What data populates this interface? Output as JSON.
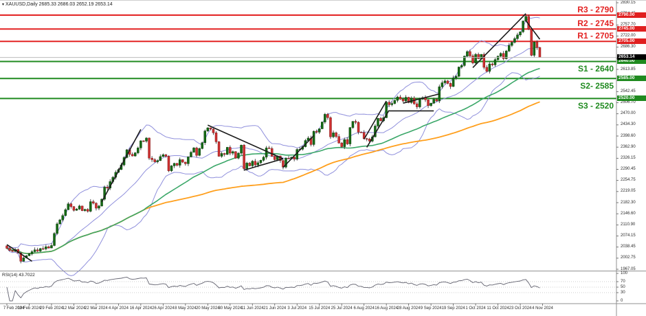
{
  "window": {
    "title": "XAUUSD,Daily  2685.33 2686.03 2652.19 2653.14"
  },
  "colors": {
    "background": "#ffffff",
    "bull_candle": "#156b15",
    "bull_border": "#0a3d0a",
    "bear_candle": "#d03131",
    "bear_border": "#7a1616",
    "wick": "#3c3c3c",
    "bollinger": "#8f8fdc",
    "ma_fast_green": "#3aa768",
    "ma_slow_orange": "#ff9f1c",
    "resistance_line": "#e32222",
    "support_line": "#1f8a1f",
    "current_price_line": "#bcbcbc",
    "trendline": "#1a1a1a",
    "rsi_line": "#62626f",
    "rsi_grid": "#bdbdbd",
    "badge_resistance": "#e01f1f",
    "badge_support": "#1f8a1f",
    "badge_current": "#000000",
    "frame": "#909090"
  },
  "levels": [
    {
      "id": "R3",
      "label": "R3 - 2790",
      "price": 2790,
      "badge": "2790.00",
      "kind": "resistance"
    },
    {
      "id": "R2",
      "label": "R2 - 2745",
      "price": 2745,
      "badge": "2745.00",
      "kind": "resistance"
    },
    {
      "id": "R1",
      "label": "R1 - 2705",
      "price": 2705,
      "badge": "2705.00",
      "kind": "resistance"
    },
    {
      "id": "S1",
      "label": "S1 - 2640",
      "price": 2640,
      "badge": "2640.00",
      "kind": "support"
    },
    {
      "id": "S2",
      "label": "S2- 2585",
      "price": 2585,
      "badge": "2585.00",
      "kind": "support"
    },
    {
      "id": "S3",
      "label": "S3 - 2520",
      "price": 2520,
      "badge": "2520.00",
      "kind": "support"
    }
  ],
  "current_price": {
    "value": 2653.14,
    "badge": "2653.14"
  },
  "price_axis": {
    "top_value": 2830.15,
    "bottom_value": 1967.05,
    "ticks": [
      "2830.15",
      "2794.45",
      "2757.70",
      "2722.00",
      "2686.30",
      "2650.60",
      "2613.85",
      "2578.15",
      "2542.45",
      "2506.70",
      "2470.00",
      "2434.30",
      "2398.60",
      "2362.90",
      "2326.15",
      "2290.45",
      "2254.75",
      "2219.05",
      "2182.30",
      "2146.60",
      "2110.90",
      "2074.15",
      "2038.45",
      "2002.75",
      "1967.05"
    ]
  },
  "rsi_pane": {
    "label": "RSI(14) 43.7022",
    "period": 14,
    "value": 43.7022,
    "scale": [
      "100",
      "70",
      "50",
      "30",
      "0"
    ],
    "scale_values": [
      100,
      70,
      50,
      30,
      0
    ],
    "grid_levels": [
      70,
      50,
      30
    ]
  },
  "date_axis": {
    "labels": [
      "7 Feb 2024",
      "19 Feb 2024",
      "29 Feb 2024",
      "12 Mar 2024",
      "22 Mar 2024",
      "4 Apr 2024",
      "16 Apr 2024",
      "26 Apr 2024",
      "8 May 2024",
      "20 May 2024",
      "30 May 2024",
      "11 Jun 2024",
      "21 Jun 2024",
      "3 Jul 2024",
      "15 Jul 2024",
      "25 Jul 2024",
      "6 Aug 2024",
      "16 Aug 2024",
      "28 Aug 2024",
      "9 Sep 2024",
      "19 Sep 2024",
      "1 Oct 2024",
      "11 Oct 2024",
      "23 Oct 2024",
      "4 Nov 2024"
    ]
  },
  "chart_data": {
    "type": "candlestick",
    "symbol": "XAUUSD",
    "timeframe": "Daily",
    "title": "XAUUSD,Daily  2685.33 2686.03 2652.19 2653.14",
    "last_ohlc": [
      2685.33,
      2686.03,
      2652.19,
      2653.14
    ],
    "closes": [
      2035,
      2028,
      2025,
      2031,
      2020,
      1993,
      2004,
      2011,
      2017,
      2024,
      2030,
      2026,
      2034,
      2033,
      2040,
      2036,
      2044,
      2083,
      2114,
      2127,
      2141,
      2160,
      2179,
      2170,
      2158,
      2162,
      2172,
      2157,
      2161,
      2155,
      2186,
      2181,
      2165,
      2172,
      2194,
      2233,
      2230,
      2251,
      2265,
      2281,
      2290,
      2305,
      2329,
      2354,
      2339,
      2334,
      2344,
      2360,
      2383,
      2382,
      2392,
      2327,
      2322,
      2315,
      2319,
      2332,
      2338,
      2333,
      2286,
      2302,
      2310,
      2304,
      2322,
      2314,
      2309,
      2331,
      2346,
      2360,
      2336,
      2358,
      2377,
      2415,
      2425,
      2421,
      2409,
      2380,
      2333,
      2342,
      2339,
      2362,
      2343,
      2348,
      2327,
      2343,
      2369,
      2293,
      2311,
      2302,
      2317,
      2305,
      2312,
      2320,
      2330,
      2360,
      2358,
      2333,
      2322,
      2334,
      2319,
      2298,
      2327,
      2326,
      2330,
      2324,
      2355,
      2356,
      2364,
      2384,
      2392,
      2371,
      2414,
      2411,
      2422,
      2444,
      2469,
      2458,
      2396,
      2409,
      2397,
      2376,
      2364,
      2387,
      2373,
      2426,
      2446,
      2443,
      2411,
      2410,
      2390,
      2389,
      2382,
      2396,
      2431,
      2456,
      2448,
      2458,
      2508,
      2500,
      2504,
      2514,
      2525,
      2518,
      2512,
      2524,
      2507,
      2521,
      2503,
      2493,
      2518,
      2523,
      2516,
      2497,
      2505,
      2517,
      2512,
      2558,
      2571,
      2577,
      2569,
      2559,
      2587,
      2592,
      2622,
      2627,
      2657,
      2672,
      2658,
      2635,
      2663,
      2649,
      2663,
      2621,
      2608,
      2632,
      2629,
      2646,
      2657,
      2666,
      2649,
      2674,
      2692,
      2702,
      2714,
      2726,
      2736,
      2771,
      2786,
      2745,
      2660,
      2703,
      2685,
      2653.14
    ],
    "indicators": {
      "bollinger_period": 20,
      "bollinger_dev": 2,
      "ma_fast_period": 50,
      "ma_slow_period": 100,
      "rsi_period": 14
    },
    "support_resistance": {
      "R3": 2790,
      "R2": 2745,
      "R1": 2705,
      "S1": 2640,
      "S2": 2585,
      "S3": 2520
    },
    "trendlines": [
      [
        0,
        2047,
        9,
        1993
      ],
      [
        34,
        2185,
        48,
        2420
      ],
      [
        72,
        2434,
        99,
        2325
      ],
      [
        85,
        2288,
        99,
        2325
      ],
      [
        99,
        2297,
        110,
        2400
      ],
      [
        128,
        2388,
        136,
        2512
      ],
      [
        129,
        2362,
        137,
        2482
      ],
      [
        137,
        2480,
        153,
        2480
      ],
      [
        142,
        2505,
        155,
        2535
      ],
      [
        167,
        2620,
        186,
        2795
      ],
      [
        186,
        2772,
        191,
        2712
      ]
    ],
    "xlabel": "",
    "ylabel": "",
    "ylim": [
      1967.05,
      2830.15
    ],
    "grid": false,
    "legend": false
  }
}
